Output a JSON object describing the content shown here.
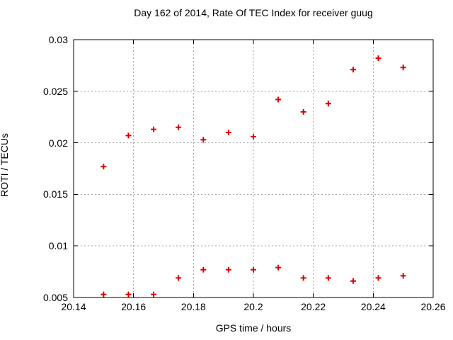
{
  "chart_data": {
    "type": "scatter",
    "title": "Day 162 of 2014, Rate Of TEC Index for receiver guug",
    "xlabel": "GPS time / hours",
    "ylabel": "ROTI / TECUs",
    "xlim": [
      20.14,
      20.26
    ],
    "ylim": [
      0.005,
      0.03
    ],
    "x_ticks": [
      20.14,
      20.16,
      20.18,
      20.2,
      20.22,
      20.24,
      20.26
    ],
    "x_tick_labels": [
      "20.14",
      "20.16",
      "20.18",
      "20.2",
      "20.22",
      "20.24",
      "20.26"
    ],
    "y_ticks": [
      0.005,
      0.01,
      0.015,
      0.02,
      0.025,
      0.03
    ],
    "y_tick_labels": [
      "0.005",
      "0.01",
      "0.015",
      "0.02",
      "0.025",
      "0.03"
    ],
    "grid": true,
    "legend": "none",
    "marker": "plus",
    "marker_color": "#dd0000",
    "grid_color": "#a6a6a6",
    "axis_color": "#000000",
    "series": [
      {
        "name": "ROTI",
        "points": [
          [
            20.15,
            0.0177
          ],
          [
            20.1583,
            0.0207
          ],
          [
            20.1667,
            0.0213
          ],
          [
            20.175,
            0.0215
          ],
          [
            20.1833,
            0.0203
          ],
          [
            20.1917,
            0.021
          ],
          [
            20.2,
            0.0206
          ],
          [
            20.2083,
            0.0242
          ],
          [
            20.2167,
            0.023
          ],
          [
            20.225,
            0.0238
          ],
          [
            20.2333,
            0.0271
          ],
          [
            20.2417,
            0.0282
          ],
          [
            20.25,
            0.0273
          ],
          [
            20.15,
            0.0053
          ],
          [
            20.1583,
            0.0053
          ],
          [
            20.1667,
            0.0053
          ],
          [
            20.175,
            0.0069
          ],
          [
            20.1833,
            0.0077
          ],
          [
            20.1917,
            0.0077
          ],
          [
            20.2,
            0.0077
          ],
          [
            20.2083,
            0.0079
          ],
          [
            20.2167,
            0.0069
          ],
          [
            20.225,
            0.0069
          ],
          [
            20.2333,
            0.0066
          ],
          [
            20.2417,
            0.0069
          ],
          [
            20.25,
            0.0071
          ]
        ]
      }
    ]
  }
}
